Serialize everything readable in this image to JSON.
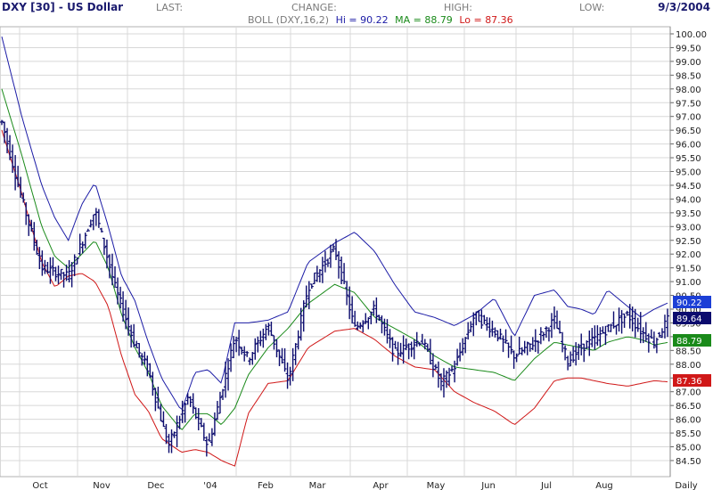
{
  "header": {
    "title": "DXY [30] - US Dollar",
    "last_label": "LAST:",
    "change_label": "CHANGE:",
    "high_label": "HIGH:",
    "low_label": "LOW:",
    "date": "9/3/2004"
  },
  "legend": {
    "prefix": "BOLL (DXY,16,2)",
    "hi_text": "Hi = 90.22",
    "ma_text": "MA = 88.79",
    "lo_text": "Lo = 87.36"
  },
  "colors": {
    "upper": "#1c1ca6",
    "middle": "#1a8a1a",
    "lower": "#d01818",
    "price": "#0c0c6e",
    "grid": "#d8d8d8",
    "hi_box": "#1c3fd6",
    "last_box": "#0c0c6e",
    "ma_box": "#1a8a1a",
    "lo_box": "#d01818"
  },
  "chart_data": {
    "type": "candlestick",
    "interval_label": "Daily",
    "ylim": [
      84.25,
      100.25
    ],
    "yticks": [
      "100.00",
      "99.50",
      "99.00",
      "98.50",
      "98.00",
      "97.50",
      "97.00",
      "96.50",
      "96.00",
      "95.50",
      "95.00",
      "94.50",
      "94.00",
      "93.50",
      "93.00",
      "92.50",
      "92.00",
      "91.50",
      "91.00",
      "90.50",
      "90.00",
      "89.50",
      "89.00",
      "88.50",
      "88.00",
      "87.50",
      "87.00",
      "86.50",
      "86.00",
      "85.50",
      "85.00",
      "84.50"
    ],
    "month_labels": [
      "Oct",
      "Nov",
      "Dec",
      "'04",
      "Feb",
      "Mar",
      "Apr",
      "May",
      "Jun",
      "Jul",
      "Aug",
      "Daily"
    ],
    "price_path": {
      "t": [
        0,
        0.03,
        0.06,
        0.1,
        0.14,
        0.17,
        0.2,
        0.22,
        0.25,
        0.28,
        0.31,
        0.33,
        0.35,
        0.37,
        0.4,
        0.43,
        0.46,
        0.5,
        0.53,
        0.56,
        0.59,
        0.63,
        0.66,
        0.68,
        0.71,
        0.74,
        0.77,
        0.8,
        0.83,
        0.85,
        0.87,
        0.89,
        0.91,
        0.94,
        0.96,
        0.98,
        1
      ],
      "v": [
        96.8,
        94.0,
        91.5,
        91.2,
        93.6,
        90.8,
        88.7,
        87.8,
        85.0,
        86.8,
        85.0,
        87.0,
        89.0,
        88.2,
        89.4,
        87.4,
        90.8,
        92.2,
        89.3,
        90.0,
        88.4,
        88.9,
        87.3,
        87.9,
        89.8,
        89.2,
        88.3,
        88.8,
        89.6,
        88.1,
        88.6,
        88.9,
        89.3,
        89.8,
        89.2,
        88.8,
        89.6
      ]
    },
    "upper_path": {
      "t": [
        0,
        0.03,
        0.06,
        0.08,
        0.1,
        0.12,
        0.14,
        0.16,
        0.18,
        0.2,
        0.22,
        0.24,
        0.27,
        0.29,
        0.31,
        0.33,
        0.35,
        0.37,
        0.4,
        0.43,
        0.46,
        0.5,
        0.53,
        0.56,
        0.59,
        0.62,
        0.65,
        0.68,
        0.71,
        0.74,
        0.77,
        0.8,
        0.83,
        0.85,
        0.87,
        0.89,
        0.91,
        0.94,
        0.96,
        0.98,
        1
      ],
      "v": [
        99.9,
        97.0,
        94.5,
        93.3,
        92.5,
        93.8,
        94.6,
        93.0,
        91.2,
        90.3,
        88.8,
        87.5,
        86.3,
        87.7,
        87.8,
        87.3,
        89.5,
        89.5,
        89.6,
        89.9,
        91.7,
        92.4,
        92.8,
        92.1,
        90.9,
        89.9,
        89.7,
        89.4,
        89.8,
        90.4,
        89.0,
        90.5,
        90.7,
        90.1,
        90.0,
        89.8,
        90.7,
        90.1,
        89.7,
        90.0,
        90.22
      ]
    },
    "middle_path": {
      "t": [
        0,
        0.03,
        0.06,
        0.08,
        0.1,
        0.12,
        0.14,
        0.16,
        0.18,
        0.2,
        0.22,
        0.24,
        0.27,
        0.29,
        0.31,
        0.33,
        0.35,
        0.37,
        0.4,
        0.43,
        0.46,
        0.5,
        0.53,
        0.56,
        0.59,
        0.62,
        0.65,
        0.68,
        0.71,
        0.74,
        0.77,
        0.8,
        0.83,
        0.85,
        0.87,
        0.89,
        0.91,
        0.94,
        0.96,
        0.98,
        1
      ],
      "v": [
        98.0,
        95.6,
        93.0,
        91.9,
        91.5,
        92.0,
        92.5,
        91.5,
        89.8,
        88.6,
        87.7,
        86.5,
        85.6,
        86.2,
        86.2,
        85.8,
        86.4,
        87.6,
        88.6,
        89.3,
        90.2,
        90.9,
        90.6,
        89.7,
        89.3,
        88.9,
        88.3,
        87.9,
        87.8,
        87.7,
        87.4,
        88.2,
        88.8,
        88.7,
        88.6,
        88.5,
        88.8,
        89.0,
        88.9,
        88.7,
        88.79
      ]
    },
    "lower_path": {
      "t": [
        0,
        0.03,
        0.06,
        0.08,
        0.1,
        0.12,
        0.14,
        0.16,
        0.18,
        0.2,
        0.22,
        0.24,
        0.27,
        0.29,
        0.31,
        0.33,
        0.35,
        0.37,
        0.4,
        0.43,
        0.46,
        0.5,
        0.53,
        0.56,
        0.59,
        0.62,
        0.65,
        0.68,
        0.71,
        0.74,
        0.77,
        0.8,
        0.83,
        0.85,
        0.87,
        0.89,
        0.91,
        0.94,
        0.96,
        0.98,
        1
      ],
      "v": [
        96.5,
        94.2,
        91.7,
        90.8,
        91.2,
        91.3,
        91.0,
        90.1,
        88.3,
        86.9,
        86.3,
        85.3,
        84.8,
        84.9,
        84.8,
        84.5,
        84.3,
        86.2,
        87.3,
        87.4,
        88.6,
        89.2,
        89.3,
        88.9,
        88.3,
        87.9,
        87.8,
        87.0,
        86.6,
        86.3,
        85.8,
        86.4,
        87.4,
        87.5,
        87.5,
        87.4,
        87.3,
        87.2,
        87.3,
        87.4,
        87.36
      ]
    },
    "last_values": {
      "hi": "90.22",
      "last": "89.64",
      "ma": "88.79",
      "lo": "87.36"
    }
  }
}
